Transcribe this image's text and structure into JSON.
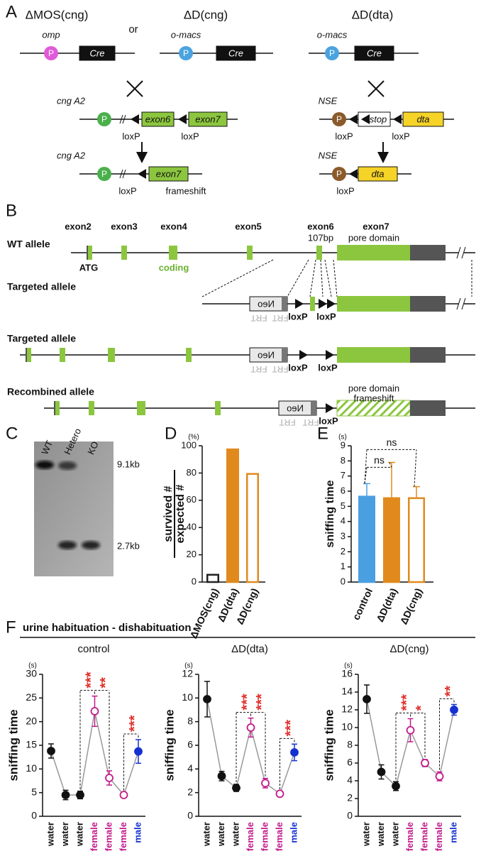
{
  "panel_a": {
    "label": "A",
    "title_left": "ΔMOS(cng)",
    "or": "or",
    "title_mid": "ΔD(cng)",
    "title_right": "ΔD(dta)",
    "omp": "omp",
    "omacs": "o-macs",
    "p": "P",
    "cre": "Cre",
    "cng_a2": "cng A2",
    "exon6": "exon6",
    "exon7": "exon7",
    "loxp": "loxP",
    "nse": "NSE",
    "stop": "stop",
    "dta": "dta",
    "frameshift": "frameshift"
  },
  "panel_b": {
    "label": "B",
    "exons": [
      "exon2",
      "exon3",
      "exon4",
      "exon5",
      "exon6",
      "exon7"
    ],
    "bp": "107bp",
    "pore": "pore domain",
    "rows": [
      "WT allele",
      "Targeted allele",
      "Targeted allele",
      "Recombined allele"
    ],
    "atg": "ATG",
    "coding": "coding",
    "neo": "Neo",
    "frt": "FRT",
    "loxp": "loxP",
    "frameshift": "frameshift"
  },
  "panel_c": {
    "label": "C",
    "lanes": [
      "WT",
      "Hetero",
      "KO"
    ],
    "sizes": [
      "9.1kb",
      "2.7kb"
    ]
  },
  "panel_f": {
    "label": "F",
    "title": "urine habituation - dishabituation"
  },
  "chart_data": [
    {
      "type": "bar",
      "label": "D",
      "unit": "(%)",
      "ylabel": [
        "survived #",
        "expected #"
      ],
      "categories": [
        "ΔMOS(cng)",
        "ΔD(dta)",
        "ΔD(cng)"
      ],
      "values": [
        6,
        98,
        80
      ],
      "colors": [
        "#222222",
        "#e08a1e",
        "#e08a1e"
      ],
      "filled": [
        false,
        true,
        false
      ],
      "ylim": [
        0,
        100
      ],
      "yticks": [
        0,
        20,
        40,
        60,
        80,
        100
      ]
    },
    {
      "type": "bar",
      "label": "E",
      "unit": "(s)",
      "ylabel": "sniffing time",
      "categories": [
        "control",
        "ΔD(dta)",
        "ΔD(cng)"
      ],
      "values": [
        5.7,
        5.6,
        5.6
      ],
      "errors": [
        0.8,
        2.3,
        0.7
      ],
      "colors": [
        "#4a9fe0",
        "#e08a1e",
        "#e08a1e"
      ],
      "filled": [
        true,
        true,
        false
      ],
      "ylim": [
        0,
        9
      ],
      "yticks": [
        0,
        1,
        2,
        3,
        4,
        5,
        6,
        7,
        8,
        9
      ],
      "comparisons": [
        {
          "label": "ns",
          "pair": [
            0,
            1
          ]
        },
        {
          "label": "ns",
          "pair": [
            0,
            2
          ]
        }
      ]
    },
    {
      "type": "line",
      "title": "control",
      "unit": "(s)",
      "ylabel": "sniffing time",
      "categories": [
        "water",
        "water",
        "water",
        "female",
        "female",
        "female",
        "male"
      ],
      "values": [
        13.8,
        4.5,
        4.5,
        22.2,
        8.1,
        4.5,
        13.7
      ],
      "errors": [
        1.5,
        1.0,
        0.8,
        3.2,
        1.5,
        0.5,
        2.5
      ],
      "colors": [
        "#111111",
        "#111111",
        "#111111",
        "#c2198a",
        "#c2198a",
        "#c2198a",
        "#1530d0"
      ],
      "open": [
        false,
        false,
        false,
        true,
        true,
        true,
        false
      ],
      "ylim": [
        0,
        30
      ],
      "yticks": [
        0,
        5,
        10,
        15,
        20,
        25,
        30
      ],
      "comparisons": [
        {
          "label": "***",
          "pair": [
            2,
            3
          ]
        },
        {
          "label": "**",
          "pair": [
            3,
            4
          ]
        },
        {
          "label": "***",
          "pair": [
            5,
            6
          ]
        }
      ]
    },
    {
      "type": "line",
      "title": "ΔD(dta)",
      "unit": "(s)",
      "ylabel": "sniffing time",
      "categories": [
        "water",
        "water",
        "water",
        "female",
        "female",
        "female",
        "male"
      ],
      "values": [
        9.9,
        3.4,
        2.4,
        7.5,
        2.8,
        1.9,
        5.4
      ],
      "errors": [
        1.5,
        0.4,
        0.3,
        0.8,
        0.4,
        0.2,
        0.7
      ],
      "colors": [
        "#111111",
        "#111111",
        "#111111",
        "#c2198a",
        "#c2198a",
        "#c2198a",
        "#1530d0"
      ],
      "open": [
        false,
        false,
        false,
        true,
        true,
        true,
        false
      ],
      "ylim": [
        0,
        12
      ],
      "yticks": [
        0,
        2,
        4,
        6,
        8,
        10,
        12
      ],
      "comparisons": [
        {
          "label": "***",
          "pair": [
            2,
            3
          ]
        },
        {
          "label": "***",
          "pair": [
            3,
            4
          ]
        },
        {
          "label": "***",
          "pair": [
            5,
            6
          ]
        }
      ]
    },
    {
      "type": "line",
      "title": "ΔD(cng)",
      "unit": "(s)",
      "ylabel": "sniffing time",
      "categories": [
        "water",
        "water",
        "water",
        "female",
        "female",
        "female",
        "male"
      ],
      "values": [
        13.2,
        5.0,
        3.4,
        9.7,
        6.0,
        4.5,
        12.0
      ],
      "errors": [
        1.6,
        0.8,
        0.5,
        1.3,
        0.4,
        0.5,
        0.6
      ],
      "colors": [
        "#111111",
        "#111111",
        "#111111",
        "#c2198a",
        "#c2198a",
        "#c2198a",
        "#1530d0"
      ],
      "open": [
        false,
        false,
        false,
        true,
        true,
        true,
        false
      ],
      "ylim": [
        0,
        16
      ],
      "yticks": [
        0,
        2,
        4,
        6,
        8,
        10,
        12,
        14,
        16
      ],
      "comparisons": [
        {
          "label": "***",
          "pair": [
            2,
            3
          ]
        },
        {
          "label": "*",
          "pair": [
            3,
            4
          ]
        },
        {
          "label": "**",
          "pair": [
            5,
            6
          ]
        }
      ]
    }
  ]
}
